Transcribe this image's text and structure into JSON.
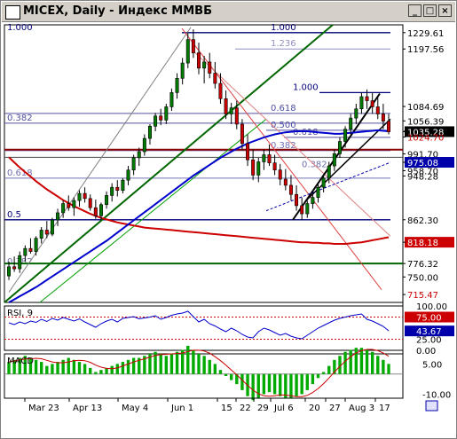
{
  "window": {
    "title": "MICEX, Daily - Индекс ММВБ",
    "buttons": [
      "_",
      "□",
      "×"
    ]
  },
  "colors": {
    "up": "#007a00",
    "down": "#cc0000",
    "ma_blue": "#0000cc",
    "ma_red": "#cc0000",
    "trend_green": "#006600",
    "fib": "#00007a"
  },
  "chart_data": {
    "type": "candlestick",
    "instrument": "MICEX",
    "timeframe": "Daily",
    "x_tick_labels": [
      "Mar 23",
      "Apr 13",
      "May 4",
      "Jun 1",
      "15",
      "22",
      "29",
      "Jul 6",
      "20",
      "27",
      "Aug 3",
      "17"
    ],
    "y_tick_labels": [
      "1229.61",
      "1197.56",
      "1084.69",
      "1056.39",
      "1035.28",
      "1024.70",
      "991.70",
      "975.08",
      "958.70",
      "948.28",
      "862.30",
      "818.18",
      "776.32",
      "750.00",
      "715.47"
    ],
    "last_price": 1035.28,
    "price_range": [
      700,
      1245
    ],
    "fib_levels": [
      {
        "label": "1.000",
        "price": 1229.61
      },
      {
        "label": "1.000",
        "price": 1229.61
      },
      {
        "label": "1.236",
        "price": 1197.56
      },
      {
        "label": "1.000",
        "price": 1112
      },
      {
        "label": "0.618",
        "price": 1071
      },
      {
        "label": "0.382",
        "price": 1052
      },
      {
        "label": "0.500",
        "price": 1038
      },
      {
        "label": "0.618",
        "price": 1024
      },
      {
        "label": "0.382",
        "price": 998
      },
      {
        "label": "0.618",
        "price": 944
      },
      {
        "label": "0.382",
        "price": 960
      },
      {
        "label": "0.5",
        "price": 862.3
      },
      {
        "label": "0.382",
        "price": 770
      }
    ],
    "rsi": {
      "label": "RSI, 9",
      "levels": [
        "100.00",
        "75.00",
        "43.67",
        "25.00",
        "0.00"
      ],
      "current": 43.67
    },
    "macd": {
      "label": "MACD",
      "levels": [
        "5.00",
        "-10.00"
      ]
    },
    "candles": [
      [
        752,
        780,
        744,
        770
      ],
      [
        770,
        790,
        760,
        766
      ],
      [
        766,
        800,
        758,
        792
      ],
      [
        792,
        812,
        780,
        806
      ],
      [
        806,
        826,
        796,
        800
      ],
      [
        800,
        830,
        792,
        826
      ],
      [
        826,
        848,
        816,
        842
      ],
      [
        842,
        860,
        826,
        834
      ],
      [
        834,
        866,
        830,
        862
      ],
      [
        862,
        884,
        850,
        876
      ],
      [
        876,
        900,
        866,
        894
      ],
      [
        894,
        910,
        880,
        886
      ],
      [
        886,
        906,
        870,
        900
      ],
      [
        900,
        920,
        888,
        914
      ],
      [
        914,
        926,
        896,
        904
      ],
      [
        904,
        912,
        880,
        886
      ],
      [
        886,
        902,
        864,
        870
      ],
      [
        870,
        896,
        862,
        892
      ],
      [
        892,
        918,
        884,
        910
      ],
      [
        910,
        934,
        898,
        926
      ],
      [
        926,
        940,
        908,
        920
      ],
      [
        920,
        944,
        914,
        940
      ],
      [
        940,
        968,
        930,
        960
      ],
      [
        960,
        990,
        950,
        984
      ],
      [
        984,
        1004,
        968,
        996
      ],
      [
        996,
        1030,
        988,
        1022
      ],
      [
        1022,
        1050,
        1010,
        1046
      ],
      [
        1046,
        1072,
        1036,
        1066
      ],
      [
        1066,
        1080,
        1048,
        1058
      ],
      [
        1058,
        1090,
        1050,
        1084
      ],
      [
        1084,
        1120,
        1076,
        1112
      ],
      [
        1112,
        1150,
        1100,
        1140
      ],
      [
        1140,
        1180,
        1128,
        1170
      ],
      [
        1170,
        1230,
        1160,
        1216
      ],
      [
        1216,
        1236,
        1180,
        1190
      ],
      [
        1190,
        1210,
        1148,
        1160
      ],
      [
        1160,
        1184,
        1130,
        1172
      ],
      [
        1172,
        1190,
        1140,
        1150
      ],
      [
        1150,
        1172,
        1120,
        1130
      ],
      [
        1130,
        1150,
        1090,
        1100
      ],
      [
        1100,
        1116,
        1060,
        1070
      ],
      [
        1070,
        1092,
        1050,
        1082
      ],
      [
        1082,
        1096,
        1040,
        1050
      ],
      [
        1050,
        1060,
        1000,
        1012
      ],
      [
        1012,
        1030,
        968,
        980
      ],
      [
        980,
        1000,
        940,
        950
      ],
      [
        950,
        984,
        936,
        976
      ],
      [
        976,
        1000,
        960,
        990
      ],
      [
        990,
        1010,
        968,
        974
      ],
      [
        974,
        990,
        950,
        960
      ],
      [
        960,
        972,
        930,
        942
      ],
      [
        942,
        962,
        920,
        930
      ],
      [
        930,
        950,
        900,
        912
      ],
      [
        912,
        930,
        880,
        890
      ],
      [
        890,
        906,
        862,
        874
      ],
      [
        874,
        900,
        866,
        894
      ],
      [
        894,
        916,
        884,
        906
      ],
      [
        906,
        932,
        896,
        926
      ],
      [
        926,
        950,
        916,
        944
      ],
      [
        944,
        976,
        934,
        968
      ],
      [
        968,
        1000,
        958,
        992
      ],
      [
        992,
        1024,
        984,
        1016
      ],
      [
        1016,
        1046,
        1004,
        1040
      ],
      [
        1040,
        1070,
        1030,
        1062
      ],
      [
        1062,
        1090,
        1050,
        1080
      ],
      [
        1080,
        1112,
        1070,
        1104
      ],
      [
        1104,
        1118,
        1080,
        1096
      ],
      [
        1096,
        1112,
        1070,
        1084
      ],
      [
        1084,
        1104,
        1060,
        1070
      ],
      [
        1070,
        1090,
        1040,
        1056
      ],
      [
        1056,
        1070,
        1030,
        1035
      ]
    ],
    "ma_blue": [
      700,
      706,
      712,
      718,
      724,
      730,
      737,
      744,
      751,
      758,
      765,
      772,
      779,
      786,
      793,
      800,
      807,
      814,
      821,
      829,
      837,
      845,
      853,
      861,
      869,
      877,
      885,
      893,
      901,
      909,
      917,
      925,
      933,
      941,
      949,
      956,
      963,
      970,
      977,
      984,
      990,
      996,
      1002,
      1007,
      1012,
      1016,
      1020,
      1024,
      1027,
      1030,
      1032,
      1034,
      1035,
      1036,
      1036,
      1036,
      1035,
      1034,
      1033,
      1032,
      1031,
      1031,
      1032,
      1033,
      1034,
      1035,
      1036,
      1037,
      1038,
      1037,
      1036
    ],
    "ma_red": [
      985,
      975,
      965,
      956,
      947,
      938,
      930,
      922,
      915,
      908,
      901,
      895,
      889,
      884,
      879,
      874,
      870,
      866,
      863,
      860,
      857,
      855,
      853,
      851,
      849,
      847,
      846,
      845,
      844,
      843,
      842,
      841,
      840,
      839,
      838,
      837,
      836,
      835,
      834,
      833,
      832,
      831,
      830,
      829,
      828,
      827,
      826,
      825,
      824,
      823,
      822,
      821,
      820,
      819,
      818,
      818,
      817,
      817,
      816,
      816,
      815,
      815,
      815,
      816,
      817,
      818,
      820,
      822,
      824,
      826,
      828
    ],
    "rsi_series": [
      62,
      58,
      64,
      60,
      66,
      63,
      70,
      65,
      72,
      68,
      74,
      70,
      66,
      71,
      64,
      58,
      52,
      60,
      66,
      70,
      64,
      72,
      74,
      76,
      71,
      73,
      75,
      78,
      70,
      74,
      79,
      82,
      84,
      88,
      76,
      64,
      70,
      60,
      55,
      48,
      42,
      50,
      44,
      36,
      30,
      28,
      42,
      50,
      46,
      40,
      34,
      38,
      32,
      28,
      26,
      34,
      42,
      50,
      56,
      62,
      68,
      72,
      75,
      78,
      80,
      82,
      70,
      66,
      60,
      54,
      44
    ],
    "macd_hist": [
      6,
      7,
      8,
      9,
      8,
      7,
      6,
      4,
      5,
      6,
      7,
      8,
      7,
      6,
      5,
      3,
      1,
      2,
      3,
      4,
      5,
      6,
      7,
      8,
      8,
      9,
      10,
      11,
      10,
      9,
      10,
      11,
      12,
      14,
      12,
      10,
      9,
      7,
      5,
      2,
      -1,
      -3,
      -5,
      -8,
      -11,
      -13,
      -12,
      -10,
      -9,
      -10,
      -11,
      -12,
      -12,
      -11,
      -10,
      -8,
      -5,
      -2,
      1,
      4,
      7,
      9,
      11,
      12,
      13,
      13,
      12,
      11,
      9,
      7,
      5
    ]
  }
}
